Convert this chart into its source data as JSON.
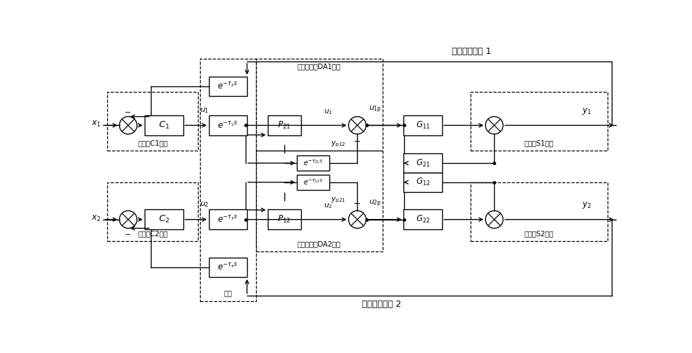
{
  "top_label": "闭环控制回路 1",
  "bottom_label": "闭环控制回路 2",
  "network_label": "网络",
  "c1_node_label": "控制器C1节点",
  "c2_node_label": "控制器C2节点",
  "da1_node_label": "解耦执行器DA1节点",
  "da2_node_label": "解耦执行器DA2节点",
  "s1_node_label": "传感器S1节点",
  "s2_node_label": "传感器S2节点",
  "figw": 10.0,
  "figh": 5.11,
  "dpi": 100
}
